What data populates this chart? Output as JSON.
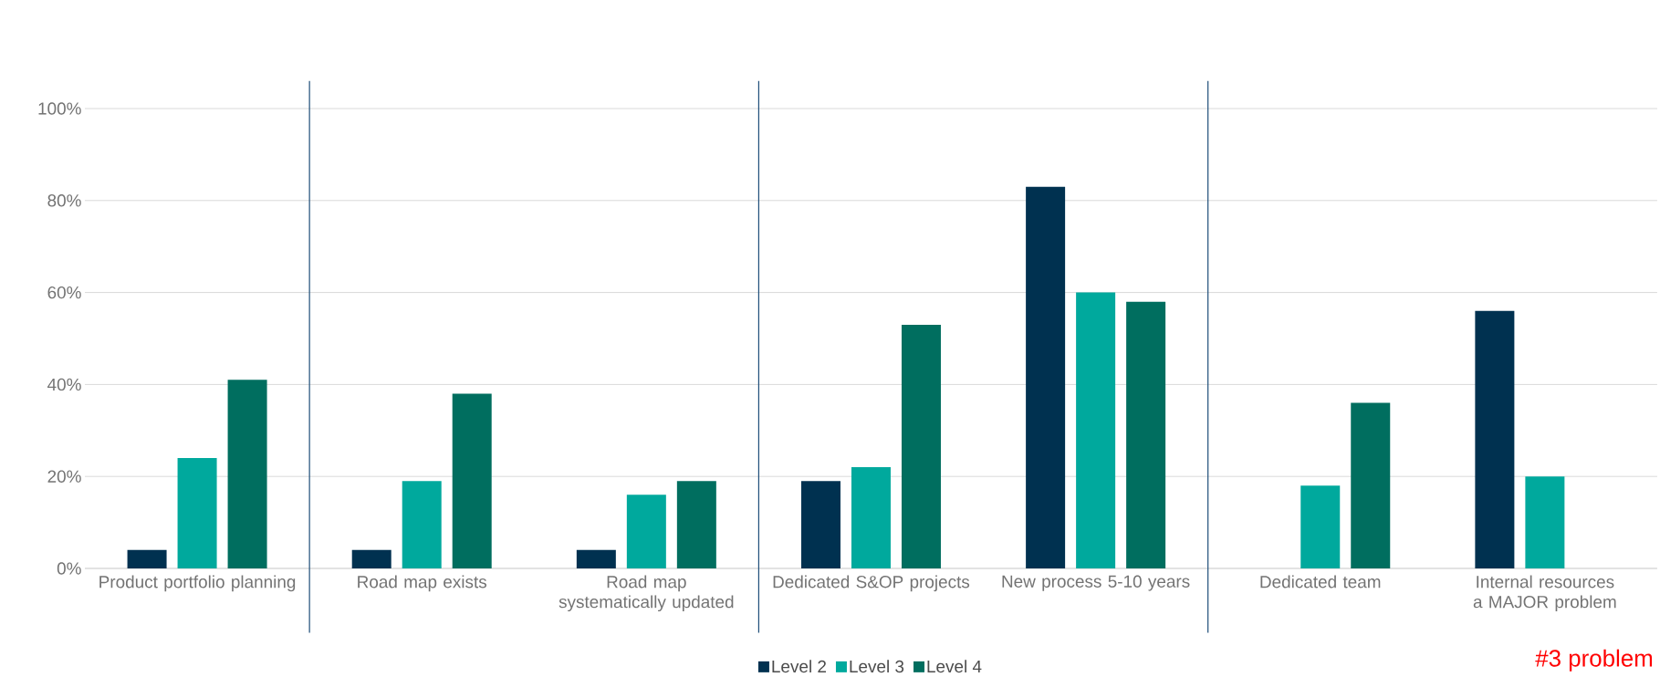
{
  "chart_data": {
    "type": "bar",
    "categories": [
      "Product portfolio planning",
      "Road map exists",
      "Road map systematically updated",
      "Dedicated S&OP projects",
      "New process 5-10 years",
      "Dedicated team",
      "Internal resources a MAJOR problem"
    ],
    "series": [
      {
        "name": "Level 2",
        "color": "#003150",
        "values": [
          4,
          4,
          4,
          19,
          83,
          null,
          56
        ]
      },
      {
        "name": "Level 3",
        "color": "#00a99d",
        "values": [
          24,
          19,
          16,
          22,
          60,
          18,
          20
        ]
      },
      {
        "name": "Level 4",
        "color": "#006e5f",
        "values": [
          41,
          38,
          19,
          53,
          58,
          36,
          null
        ]
      }
    ],
    "ylim": [
      0,
      100
    ],
    "yticks": [
      {
        "value": 0,
        "label": "0%"
      },
      {
        "value": 20,
        "label": "20%"
      },
      {
        "value": 40,
        "label": "40%"
      },
      {
        "value": 60,
        "label": "60%"
      },
      {
        "value": 80,
        "label": "80%"
      },
      {
        "value": 100,
        "label": "100%"
      }
    ],
    "grid": "y",
    "legend": "bottom",
    "annotations": [
      "#3 problem"
    ]
  }
}
